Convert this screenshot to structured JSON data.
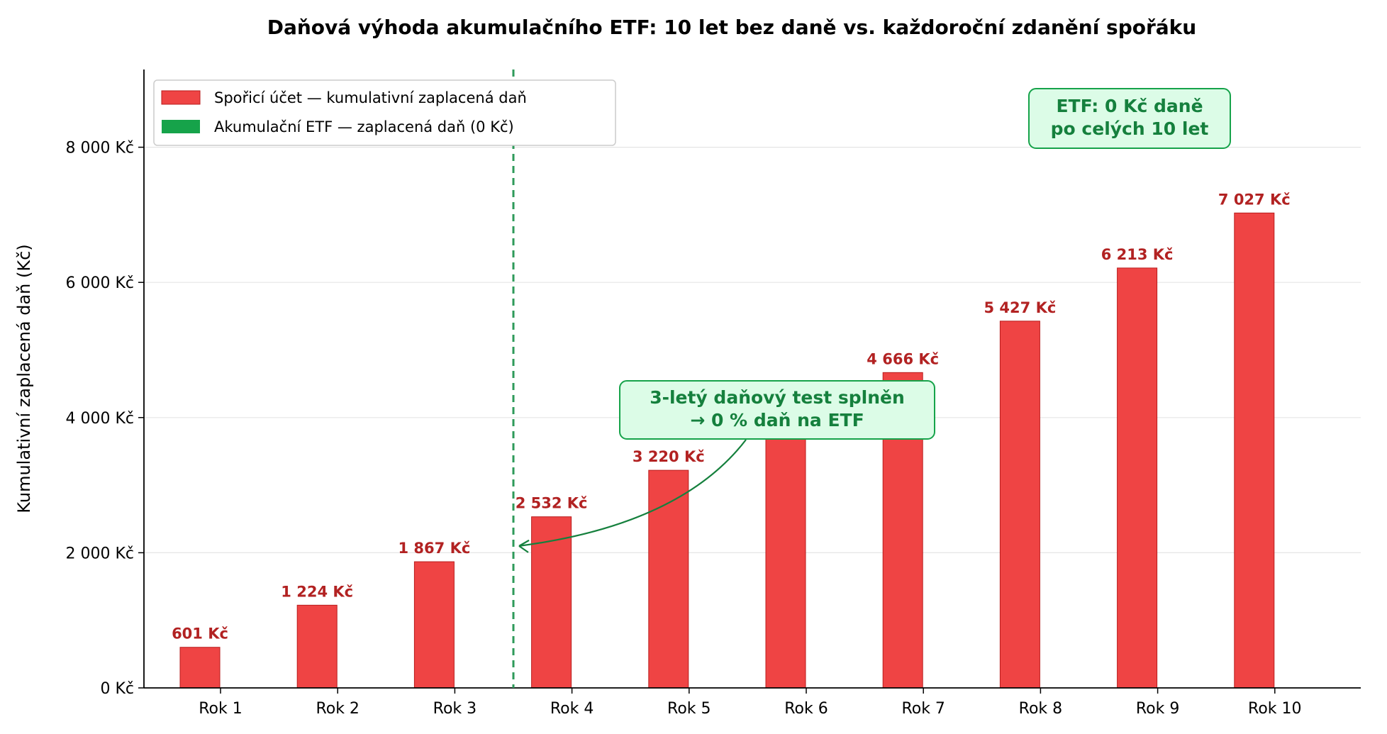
{
  "colors": {
    "bar": "#ef4444",
    "bar_edge": "#b91c1c",
    "label": "#b22222",
    "etf": "#16a34a",
    "etf_dark": "#15803d",
    "note_bg": "#dcfce7",
    "threshold_line": "#2e9a5a",
    "grid": "#e5e5e5"
  },
  "chart_data": {
    "type": "bar",
    "title": "Daňová výhoda akumulačního ETF: 10 let bez daně vs. každoroční zdanění spořáku",
    "xlabel": "",
    "ylabel": "Kumulativní zaplacená daň (Kč)",
    "categories": [
      "Rok 1",
      "Rok 2",
      "Rok 3",
      "Rok 4",
      "Rok 5",
      "Rok 6",
      "Rok 7",
      "Rok 8",
      "Rok 9",
      "Rok 10"
    ],
    "series": [
      {
        "name": "Spořicí účet — kumulativní zaplacená daň",
        "values": [
          601,
          1224,
          1867,
          2532,
          3220,
          3930,
          4666,
          5427,
          6213,
          7027
        ],
        "labels": [
          "601 Kč",
          "1 224 Kč",
          "1 867 Kč",
          "2 532 Kč",
          "3 220 Kč",
          "",
          "4 666 Kč",
          "5 427 Kč",
          "6 213 Kč",
          "7 027 Kč"
        ]
      },
      {
        "name": "Akumulační ETF — zaplacená daň (0 Kč)",
        "values": [
          0,
          0,
          0,
          0,
          0,
          0,
          0,
          0,
          0,
          0
        ],
        "labels": []
      }
    ],
    "ylim": [
      0,
      9150
    ],
    "yticks": [
      0,
      2000,
      4000,
      6000,
      8000
    ],
    "ytick_labels": [
      "0 Kč",
      "2 000 Kč",
      "4 000 Kč",
      "6 000 Kč",
      "8 000 Kč"
    ],
    "grid": true,
    "legend": "top-left",
    "threshold_after_category": "Rok 3",
    "annotations": {
      "test_note": [
        "3-letý daňový test splněn",
        "→ 0 % daň na ETF"
      ],
      "etf_note": [
        "ETF: 0 Kč daně",
        "po celých 10 let"
      ]
    }
  }
}
